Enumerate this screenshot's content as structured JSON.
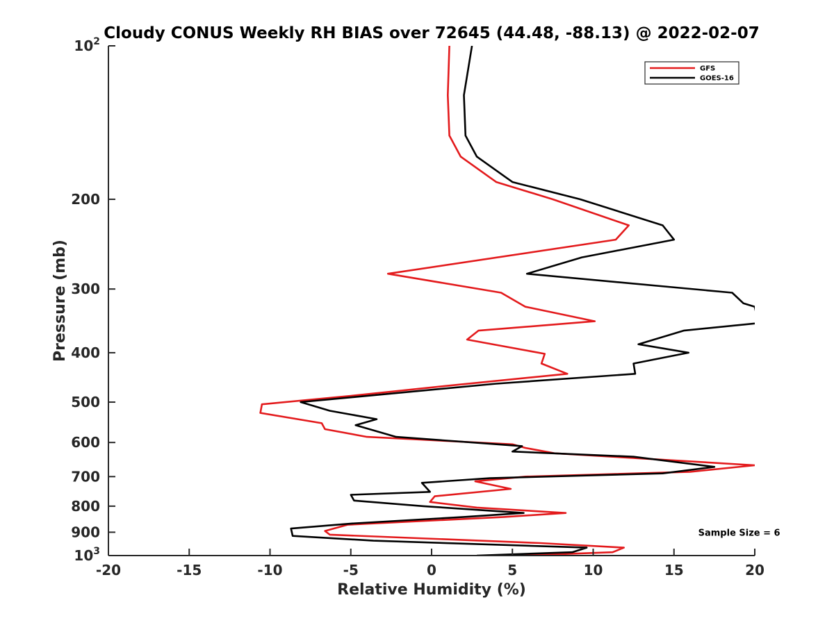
{
  "chart_data": {
    "type": "line",
    "title": "Cloudy CONUS Weekly RH BIAS over 72645 (44.48, -88.13) @ 2022-02-07",
    "xlabel": "Relative Humidity (%)",
    "ylabel": "Pressure (mb)",
    "xlim": [
      -20,
      20
    ],
    "ylim": [
      100,
      1000
    ],
    "y_scale": "log",
    "y_reversed": true,
    "xticks": [
      "-20",
      "-15",
      "-10",
      "-5",
      "0",
      "5",
      "10",
      "15",
      "20"
    ],
    "yticks": [
      {
        "value": 100,
        "base": "10",
        "exp": "2"
      },
      {
        "value": 200,
        "label": "200"
      },
      {
        "value": 300,
        "label": "300"
      },
      {
        "value": 400,
        "label": "400"
      },
      {
        "value": 500,
        "label": "500"
      },
      {
        "value": 600,
        "label": "600"
      },
      {
        "value": 700,
        "label": "700"
      },
      {
        "value": 800,
        "label": "800"
      },
      {
        "value": 900,
        "label": "900"
      },
      {
        "value": 1000,
        "base": "10",
        "exp": "3"
      }
    ],
    "grid": false,
    "legend_position": "top-right",
    "series": [
      {
        "name": "GFS",
        "color": "#e31a1c",
        "points": [
          [
            1.1,
            100
          ],
          [
            1.0,
            125
          ],
          [
            1.1,
            150
          ],
          [
            1.8,
            165
          ],
          [
            4.0,
            185
          ],
          [
            7.5,
            200
          ],
          [
            12.2,
            225
          ],
          [
            11.4,
            240
          ],
          [
            -2.7,
            280
          ],
          [
            4.3,
            305
          ],
          [
            5.8,
            325
          ],
          [
            10.1,
            347
          ],
          [
            2.9,
            362
          ],
          [
            2.2,
            377
          ],
          [
            7.0,
            402
          ],
          [
            6.8,
            420
          ],
          [
            8.4,
            440
          ],
          [
            0.8,
            465
          ],
          [
            -5.0,
            486
          ],
          [
            -10.5,
            505
          ],
          [
            -10.6,
            525
          ],
          [
            -6.8,
            550
          ],
          [
            -6.6,
            565
          ],
          [
            -4.0,
            585
          ],
          [
            5.0,
            605
          ],
          [
            5.8,
            615
          ],
          [
            7.6,
            630
          ],
          [
            20.0,
            665
          ],
          [
            16.0,
            685
          ],
          [
            5.8,
            700
          ],
          [
            2.7,
            715
          ],
          [
            4.9,
            740
          ],
          [
            0.2,
            765
          ],
          [
            -0.1,
            785
          ],
          [
            2.8,
            805
          ],
          [
            8.3,
            825
          ],
          [
            4.5,
            840
          ],
          [
            -5.2,
            870
          ],
          [
            -6.6,
            895
          ],
          [
            -6.3,
            910
          ],
          [
            6.7,
            945
          ],
          [
            11.9,
            965
          ],
          [
            11.2,
            985
          ],
          [
            5.6,
            1000
          ]
        ]
      },
      {
        "name": "GOES-16",
        "color": "#000000",
        "points": [
          [
            2.5,
            100
          ],
          [
            2.0,
            125
          ],
          [
            2.1,
            150
          ],
          [
            2.8,
            165
          ],
          [
            5.0,
            185
          ],
          [
            9.2,
            200
          ],
          [
            14.3,
            225
          ],
          [
            15.0,
            240
          ],
          [
            9.3,
            260
          ],
          [
            5.9,
            280
          ],
          [
            18.6,
            305
          ],
          [
            19.3,
            320
          ],
          [
            20.0,
            325
          ],
          [
            20.2,
            350
          ],
          [
            15.6,
            362
          ],
          [
            12.8,
            385
          ],
          [
            15.9,
            400
          ],
          [
            12.5,
            420
          ],
          [
            12.6,
            440
          ],
          [
            4.0,
            460
          ],
          [
            -8.1,
            500
          ],
          [
            -6.3,
            520
          ],
          [
            -3.4,
            540
          ],
          [
            -4.7,
            555
          ],
          [
            -2.2,
            585
          ],
          [
            5.6,
            610
          ],
          [
            5.0,
            625
          ],
          [
            12.5,
            640
          ],
          [
            17.5,
            670
          ],
          [
            14.3,
            690
          ],
          [
            3.6,
            705
          ],
          [
            -0.6,
            720
          ],
          [
            -0.1,
            750
          ],
          [
            -5.0,
            760
          ],
          [
            -4.8,
            780
          ],
          [
            -0.5,
            800
          ],
          [
            5.7,
            825
          ],
          [
            2.0,
            840
          ],
          [
            -4.9,
            865
          ],
          [
            -8.7,
            885
          ],
          [
            -8.6,
            915
          ],
          [
            -3.6,
            935
          ],
          [
            9.6,
            965
          ],
          [
            8.7,
            985
          ],
          [
            2.8,
            1000
          ]
        ]
      }
    ],
    "annotations": [
      {
        "text": "Sample Size = 6",
        "x": 16.5,
        "y": 900
      }
    ]
  }
}
